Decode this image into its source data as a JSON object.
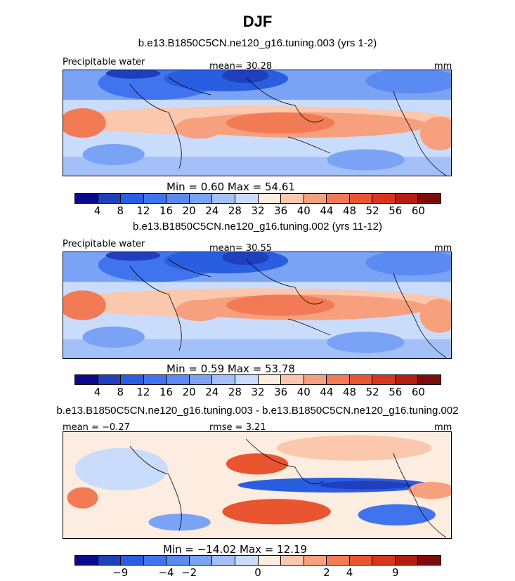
{
  "title": "DJF",
  "panels": [
    {
      "title": "b.e13.B1850C5CN.ne120_g16.tuning.003 (yrs 1-2)",
      "left_label": "Precipitable water",
      "center_label": "mean=  30.28",
      "right_label": "mm",
      "minmax": "Min =    0.60  Max =   54.61",
      "field": "abs"
    },
    {
      "title": "b.e13.B1850C5CN.ne120_g16.tuning.002 (yrs 11-12)",
      "left_label": "Precipitable water",
      "center_label": "mean=  30.55",
      "right_label": "mm",
      "minmax": "Min =    0.59  Max =   53.78",
      "field": "abs"
    },
    {
      "title": "b.e13.B1850C5CN.ne120_g16.tuning.003 - b.e13.B1850C5CN.ne120_g16.tuning.002",
      "left_label": "mean =  −0.27",
      "center_label": "rmse =    3.21",
      "right_label": "mm",
      "minmax": "Min =  −14.02  Max =   12.19",
      "field": "diff"
    }
  ],
  "chart_data": [
    {
      "type": "heatmap",
      "title": "b.e13.B1850C5CN.ne120_g16.tuning.003 (yrs 1-2)",
      "variable": "Precipitable water",
      "units": "mm",
      "mean": 30.28,
      "min": 0.6,
      "max": 54.61,
      "colorbar_ticks": [
        4,
        8,
        12,
        16,
        20,
        24,
        28,
        32,
        36,
        40,
        44,
        48,
        52,
        56,
        60
      ],
      "colorbar_colors": [
        "#0a0a8c",
        "#1f3fbf",
        "#2a5ee0",
        "#3f74ee",
        "#5a8af2",
        "#7aa3f6",
        "#a3c0f9",
        "#cadcfb",
        "#fdece0",
        "#fbc7ad",
        "#f7a07e",
        "#f27a55",
        "#ea5531",
        "#d8351a",
        "#b31e10",
        "#7e0c0a"
      ]
    },
    {
      "type": "heatmap",
      "title": "b.e13.B1850C5CN.ne120_g16.tuning.002 (yrs 11-12)",
      "variable": "Precipitable water",
      "units": "mm",
      "mean": 30.55,
      "min": 0.59,
      "max": 53.78,
      "colorbar_ticks": [
        4,
        8,
        12,
        16,
        20,
        24,
        28,
        32,
        36,
        40,
        44,
        48,
        52,
        56,
        60
      ],
      "colorbar_colors": [
        "#0a0a8c",
        "#1f3fbf",
        "#2a5ee0",
        "#3f74ee",
        "#5a8af2",
        "#7aa3f6",
        "#a3c0f9",
        "#cadcfb",
        "#fdece0",
        "#fbc7ad",
        "#f7a07e",
        "#f27a55",
        "#ea5531",
        "#d8351a",
        "#b31e10",
        "#7e0c0a"
      ]
    },
    {
      "type": "heatmap",
      "title": "b.e13.B1850C5CN.ne120_g16.tuning.003 - b.e13.B1850C5CN.ne120_g16.tuning.002",
      "units": "mm",
      "mean": -0.27,
      "rmse": 3.21,
      "min": -14.02,
      "max": 12.19,
      "colorbar_ticks": [
        -9,
        -4,
        -2,
        0,
        2,
        4,
        9
      ],
      "colorbar_colors": [
        "#0a0a8c",
        "#1f3fbf",
        "#2a5ee0",
        "#3f74ee",
        "#5a8af2",
        "#7aa3f6",
        "#a3c0f9",
        "#cadcfb",
        "#fdece0",
        "#fbc7ad",
        "#f7a07e",
        "#f27a55",
        "#ea5531",
        "#d8351a",
        "#b31e10",
        "#7e0c0a"
      ]
    }
  ]
}
